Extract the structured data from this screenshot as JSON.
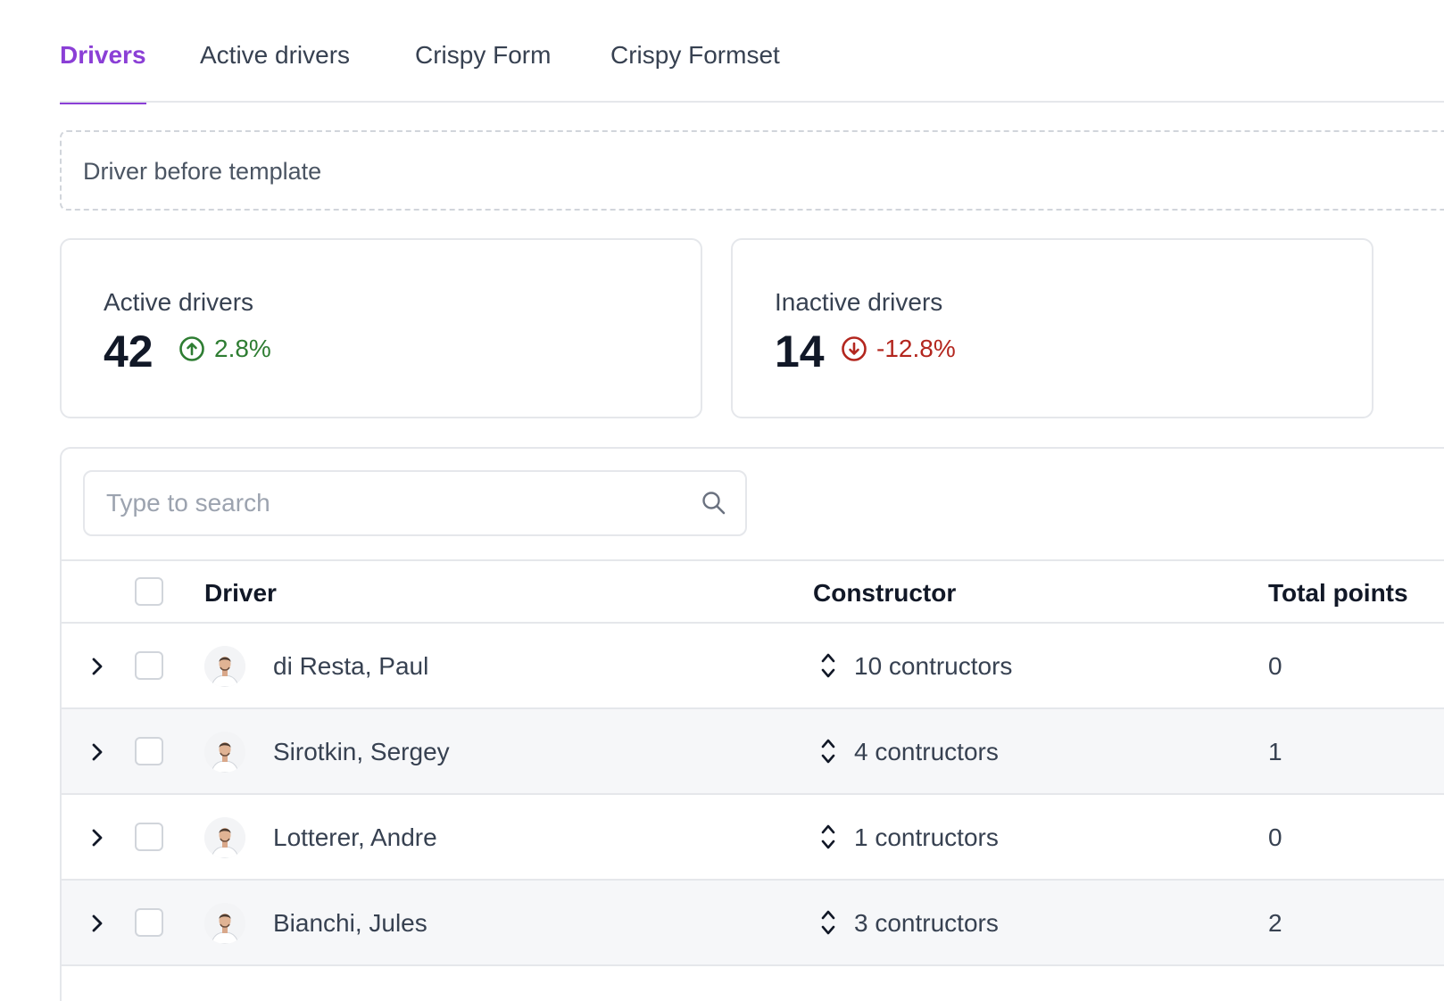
{
  "tabs": [
    {
      "label": "Drivers",
      "active": true
    },
    {
      "label": "Active drivers",
      "active": false
    },
    {
      "label": "Crispy Form",
      "active": false
    },
    {
      "label": "Crispy Formset",
      "active": false
    }
  ],
  "banner": {
    "text": "Driver before template"
  },
  "stats": [
    {
      "label": "Active drivers",
      "value": "42",
      "trend": "2.8%",
      "direction": "up",
      "color": "#2e7d32",
      "icon": "arrow-up-circle-icon"
    },
    {
      "label": "Inactive drivers",
      "value": "14",
      "trend": "-12.8%",
      "direction": "down",
      "color": "#b3261e",
      "icon": "arrow-down-circle-icon"
    }
  ],
  "search": {
    "placeholder": "Type to search",
    "value": ""
  },
  "table": {
    "columns": [
      "Driver",
      "Constructor",
      "Total points"
    ],
    "rows": [
      {
        "driver": "di Resta, Paul",
        "constructors": "10 contructors",
        "points": "0"
      },
      {
        "driver": "Sirotkin, Sergey",
        "constructors": "4 contructors",
        "points": "1"
      },
      {
        "driver": "Lotterer, Andre",
        "constructors": "1 contructors",
        "points": "0"
      },
      {
        "driver": "Bianchi, Jules",
        "constructors": "3 contructors",
        "points": "2"
      }
    ]
  },
  "colors": {
    "accent": "#8b3fd6",
    "positive": "#2e7d32",
    "negative": "#b3261e"
  }
}
